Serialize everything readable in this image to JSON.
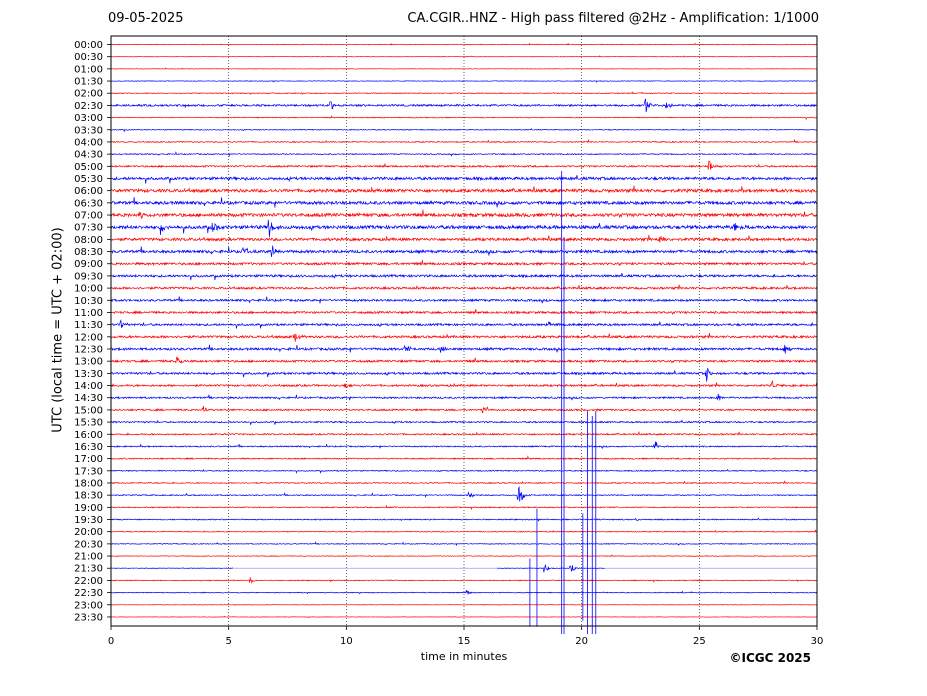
{
  "header": {
    "date": "09-05-2025",
    "title": "CA.CGIR..HNZ - High pass filtered @2Hz - Amplification: 1/1000"
  },
  "copyright": "©ICGC 2025",
  "chart_data": {
    "type": "line",
    "title": "CA.CGIR..HNZ - High pass filtered @2Hz - Amplification: 1/1000",
    "subtitle": "09-05-2025",
    "xlabel": "time in minutes",
    "ylabel": "UTC (local time = UTC + 02:00)",
    "xlim": [
      0,
      30
    ],
    "xticks": [
      "0",
      "5",
      "10",
      "15",
      "20",
      "25",
      "30"
    ],
    "grid": "vertical dotted lines at 5-minute intervals",
    "colors": {
      "red": "#ff0000",
      "blue": "#0000ff"
    },
    "rows": [
      "00:00",
      "00:30",
      "01:00",
      "01:30",
      "02:00",
      "02:30",
      "03:00",
      "03:30",
      "04:00",
      "04:30",
      "05:00",
      "05:30",
      "06:00",
      "06:30",
      "07:00",
      "07:30",
      "08:00",
      "08:30",
      "09:00",
      "09:30",
      "10:00",
      "10:30",
      "11:00",
      "11:30",
      "12:00",
      "12:30",
      "13:00",
      "13:30",
      "14:00",
      "14:30",
      "15:00",
      "15:30",
      "16:00",
      "16:30",
      "17:00",
      "17:30",
      "18:00",
      "18:30",
      "19:00",
      "19:30",
      "20:00",
      "20:30",
      "21:00",
      "21:30",
      "22:00",
      "22:30",
      "23:00",
      "23:30"
    ],
    "row_colors": [
      "red",
      "red",
      "red",
      "blue",
      "red",
      "blue",
      "red",
      "blue",
      "red",
      "blue",
      "red",
      "blue",
      "red",
      "blue",
      "red",
      "blue",
      "red",
      "blue",
      "red",
      "blue",
      "red",
      "blue",
      "red",
      "blue",
      "red",
      "blue",
      "red",
      "blue",
      "red",
      "blue",
      "red",
      "blue",
      "red",
      "blue",
      "red",
      "blue",
      "red",
      "blue",
      "red",
      "blue",
      "red",
      "blue",
      "red",
      "blue",
      "red",
      "blue",
      "red",
      "red"
    ],
    "noise_level": [
      0.3,
      0.2,
      0.2,
      0.3,
      0.4,
      0.9,
      0.4,
      0.4,
      0.5,
      0.5,
      0.8,
      1.3,
      1.5,
      1.5,
      1.6,
      1.6,
      1.3,
      1.3,
      1.1,
      1.1,
      1.0,
      1.0,
      1.0,
      1.0,
      1.1,
      1.1,
      1.0,
      1.0,
      0.9,
      0.8,
      0.8,
      0.7,
      0.7,
      0.6,
      0.6,
      0.5,
      0.5,
      0.5,
      0.5,
      0.5,
      0.4,
      0.4,
      0.3,
      0.3,
      0.4,
      0.4,
      0.2,
      0.2
    ],
    "events": [
      {
        "row": 5,
        "minute": 9.3,
        "amp": 6
      },
      {
        "row": 5,
        "minute": 22.7,
        "amp": 9
      },
      {
        "row": 5,
        "minute": 23.6,
        "amp": 6
      },
      {
        "row": 10,
        "minute": 25.4,
        "amp": 7
      },
      {
        "row": 14,
        "minute": 1.2,
        "amp": 6
      },
      {
        "row": 15,
        "minute": 2.1,
        "amp": 8
      },
      {
        "row": 15,
        "minute": 4.3,
        "amp": 9
      },
      {
        "row": 15,
        "minute": 6.7,
        "amp": 11
      },
      {
        "row": 15,
        "minute": 26.5,
        "amp": 6
      },
      {
        "row": 16,
        "minute": 23.3,
        "amp": 5
      },
      {
        "row": 17,
        "minute": 5.6,
        "amp": 7
      },
      {
        "row": 17,
        "minute": 6.8,
        "amp": 8
      },
      {
        "row": 23,
        "minute": 0.4,
        "amp": 5
      },
      {
        "row": 23,
        "minute": 18.6,
        "amp": 4
      },
      {
        "row": 24,
        "minute": 7.8,
        "amp": 6
      },
      {
        "row": 25,
        "minute": 12.5,
        "amp": 5
      },
      {
        "row": 25,
        "minute": 14.0,
        "amp": 5
      },
      {
        "row": 25,
        "minute": 28.6,
        "amp": 7
      },
      {
        "row": 26,
        "minute": 2.8,
        "amp": 6
      },
      {
        "row": 27,
        "minute": 25.3,
        "amp": 9
      },
      {
        "row": 28,
        "minute": 9.9,
        "amp": 4
      },
      {
        "row": 28,
        "minute": 28.1,
        "amp": 5
      },
      {
        "row": 29,
        "minute": 25.8,
        "amp": 5
      },
      {
        "row": 30,
        "minute": 3.9,
        "amp": 4
      },
      {
        "row": 30,
        "minute": 15.8,
        "amp": 4
      },
      {
        "row": 33,
        "minute": 23.1,
        "amp": 8
      },
      {
        "row": 37,
        "minute": 17.3,
        "amp": 15
      },
      {
        "row": 37,
        "minute": 15.2,
        "amp": 4
      },
      {
        "row": 39,
        "minute": 22.3,
        "amp": 3
      },
      {
        "row": 43,
        "minute": 18.4,
        "amp": 6
      },
      {
        "row": 43,
        "minute": 19.5,
        "amp": 8
      },
      {
        "row": 44,
        "minute": 5.9,
        "amp": 4
      },
      {
        "row": 45,
        "minute": 15.1,
        "amp": 4
      }
    ],
    "spikes": [
      {
        "row": 43,
        "minute": 17.8,
        "y_top_row": 42.2,
        "y_bottom_row": 47.8
      },
      {
        "row": 43,
        "minute": 18.1,
        "y_top_row": 38.1,
        "y_bottom_row": 47.8
      },
      {
        "row": 43,
        "minute": 19.15,
        "y_top_row": 10.4,
        "y_bottom_row": 48.4
      },
      {
        "row": 43,
        "minute": 19.25,
        "y_top_row": 15.8,
        "y_bottom_row": 48.4
      },
      {
        "row": 43,
        "minute": 20.05,
        "y_top_row": 38.5,
        "y_bottom_row": 47.3
      },
      {
        "row": 43,
        "minute": 20.25,
        "y_top_row": 30.1,
        "y_bottom_row": 48.4
      },
      {
        "row": 43,
        "minute": 20.45,
        "y_top_row": 30.5,
        "y_bottom_row": 48.4
      },
      {
        "row": 43,
        "minute": 20.6,
        "y_top_row": 30.1,
        "y_bottom_row": 48.4
      }
    ],
    "gaps": [
      {
        "row": 43,
        "from": 5.2,
        "to": 16.4
      },
      {
        "row": 43,
        "from": 21.0,
        "to": 30
      }
    ]
  }
}
